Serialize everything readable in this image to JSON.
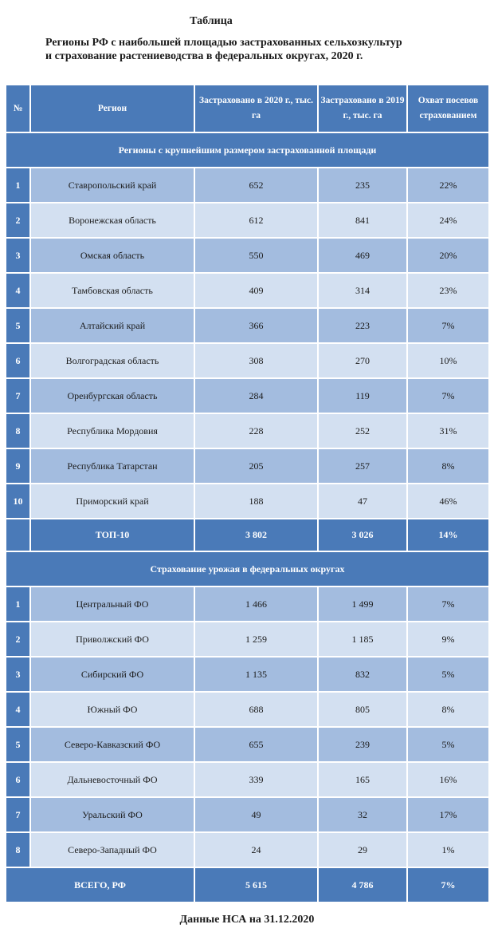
{
  "caption": "Таблица",
  "title": {
    "line1": "Регионы РФ с наибольшей площадью застрахованных сельхозкультур",
    "line2": "и страхование растениеводства в федеральных округах, 2020 г."
  },
  "headers": {
    "num": "№",
    "region": "Регион",
    "y2020": "Застраховано в 2020 г., тыс. га",
    "y2019": "Застраховано в 2019 г., тыс. га",
    "coverage": "Охват посевов страхованием"
  },
  "section1": {
    "title": "Регионы с крупнейшим размером застрахованной площади",
    "rows": [
      {
        "num": "1",
        "region": "Ставропольский край",
        "y2020": "652",
        "y2019": "235",
        "coverage": "22%"
      },
      {
        "num": "2",
        "region": "Воронежская область",
        "y2020": "612",
        "y2019": "841",
        "coverage": "24%"
      },
      {
        "num": "3",
        "region": "Омская область",
        "y2020": "550",
        "y2019": "469",
        "coverage": "20%"
      },
      {
        "num": "4",
        "region": "Тамбовская область",
        "y2020": "409",
        "y2019": "314",
        "coverage": "23%"
      },
      {
        "num": "5",
        "region": "Алтайский край",
        "y2020": "366",
        "y2019": "223",
        "coverage": "7%"
      },
      {
        "num": "6",
        "region": "Волгоградская область",
        "y2020": "308",
        "y2019": "270",
        "coverage": "10%"
      },
      {
        "num": "7",
        "region": "Оренбургская область",
        "y2020": "284",
        "y2019": "119",
        "coverage": "7%"
      },
      {
        "num": "8",
        "region": "Республика Мордовия",
        "y2020": "228",
        "y2019": "252",
        "coverage": "31%"
      },
      {
        "num": "9",
        "region": "Республика Татарстан",
        "y2020": "205",
        "y2019": "257",
        "coverage": "8%"
      },
      {
        "num": "10",
        "region": "Приморский край",
        "y2020": "188",
        "y2019": "47",
        "coverage": "46%"
      }
    ],
    "total": {
      "region": "ТОП-10",
      "y2020": "3 802",
      "y2019": "3 026",
      "coverage": "14%"
    }
  },
  "section2": {
    "title": "Страхование урожая в федеральных округах",
    "rows": [
      {
        "num": "1",
        "region": "Центральный ФО",
        "y2020": "1 466",
        "y2019": "1 499",
        "coverage": "7%"
      },
      {
        "num": "2",
        "region": "Приволжский ФО",
        "y2020": "1 259",
        "y2019": "1 185",
        "coverage": "9%"
      },
      {
        "num": "3",
        "region": "Сибирский ФО",
        "y2020": "1 135",
        "y2019": "832",
        "coverage": "5%"
      },
      {
        "num": "4",
        "region": "Южный ФО",
        "y2020": "688",
        "y2019": "805",
        "coverage": "8%"
      },
      {
        "num": "5",
        "region": "Северо-Кавказский ФО",
        "y2020": "655",
        "y2019": "239",
        "coverage": "5%"
      },
      {
        "num": "6",
        "region": "Дальневосточный ФО",
        "y2020": "339",
        "y2019": "165",
        "coverage": "16%"
      },
      {
        "num": "7",
        "region": "Уральский ФО",
        "y2020": "49",
        "y2019": "32",
        "coverage": "17%"
      },
      {
        "num": "8",
        "region": "Северо-Западный ФО",
        "y2020": "24",
        "y2019": "29",
        "coverage": "1%"
      }
    ],
    "total": {
      "region": "ВСЕГО, РФ",
      "y2020": "5 615",
      "y2019": "4 786",
      "coverage": "7%"
    }
  },
  "footer": "Данные НСА на 31.12.2020"
}
